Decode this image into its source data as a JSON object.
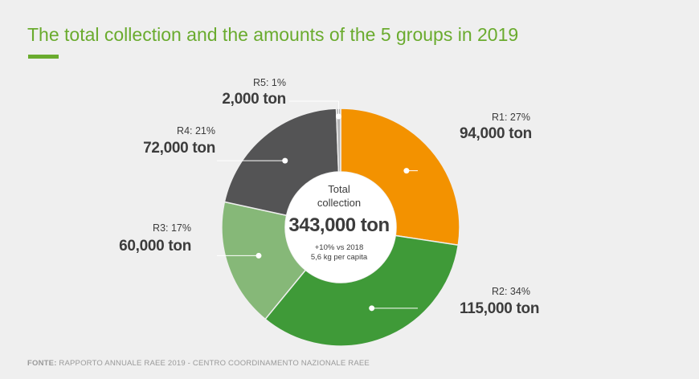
{
  "title": "The total collection and the amounts of the 5 groups in 2019",
  "center": {
    "title_line1": "Total",
    "title_line2": "collection",
    "total": "343,000 ton",
    "note_line1": "+10% vs 2018",
    "note_line2": "5,6 kg per capita"
  },
  "source": {
    "prefix": "FONTE:",
    "text": "RAPPORTO ANNUALE RAEE 2019 - CENTRO COORDINAMENTO NAZIONALE RAEE"
  },
  "chart_data": {
    "type": "pie",
    "variant": "donut",
    "unit": "ton",
    "total": 343000,
    "slices": [
      {
        "name": "R1",
        "percent_label": "R1: 27%",
        "percent": 27,
        "value": 94000,
        "value_label": "94,000 ton",
        "color": "#f39200"
      },
      {
        "name": "R2",
        "percent_label": "R2: 34%",
        "percent": 34,
        "value": 115000,
        "value_label": "115,000 ton",
        "color": "#3f9a38"
      },
      {
        "name": "R3",
        "percent_label": "R3: 17%",
        "percent": 17,
        "value": 60000,
        "value_label": "60,000 ton",
        "color": "#86b878"
      },
      {
        "name": "R4",
        "percent_label": "R4: 21%",
        "percent": 21,
        "value": 72000,
        "value_label": "72,000 ton",
        "color": "#545455"
      },
      {
        "name": "R5",
        "percent_label": "R5: 1%",
        "percent": 1,
        "value": 2000,
        "value_label": "2,000 ton",
        "color": "#b5b5b5"
      }
    ]
  }
}
